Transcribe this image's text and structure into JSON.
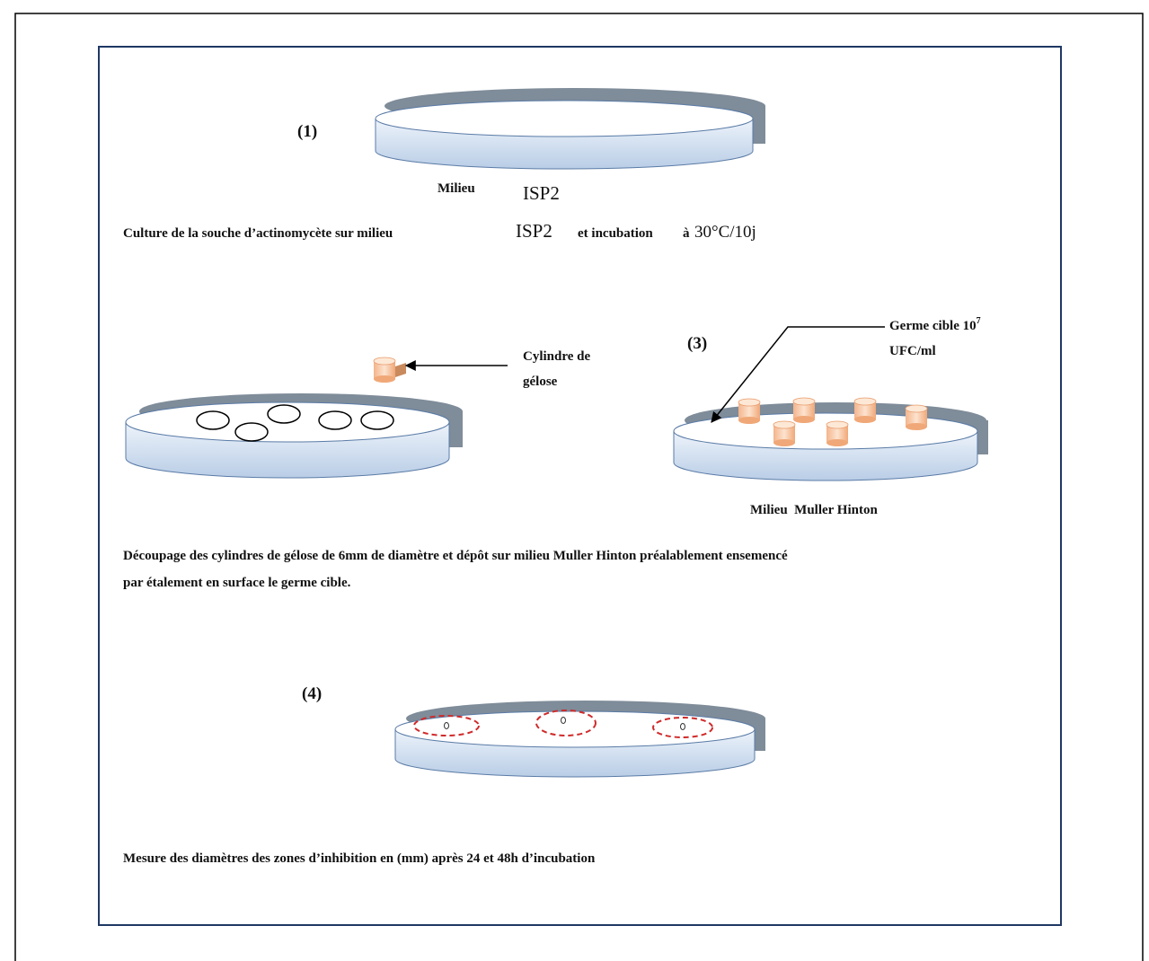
{
  "step1": {
    "number": "(1)",
    "medium_label": "Milieu",
    "medium_name": "ISP2",
    "caption": {
      "part1": "Culture de la souche d’actinomycète sur milieu",
      "medium": "ISP2",
      "part2": "et incubation",
      "part3": "à",
      "temperature": "30°C/10j"
    }
  },
  "step2": {
    "cylinder_label": [
      "Cylindre de",
      "gélose"
    ]
  },
  "step3": {
    "number": "(3)",
    "target_label": {
      "line1": "Germe cible 10",
      "exponent": "7",
      "line2": "UFC/ml"
    },
    "medium_label": "Milieu  Muller Hinton"
  },
  "caption_2_3": [
    "Découpage des cylindres de gélose de 6mm de diamètre et dépôt sur milieu Muller Hinton préalablement ensemencé",
    "par étalement en surface le germe cible."
  ],
  "step4": {
    "number": "(4)",
    "caption": "Mesure des diamètres des zones d’inhibition en (mm) après 24 et 48h d’incubation"
  }
}
